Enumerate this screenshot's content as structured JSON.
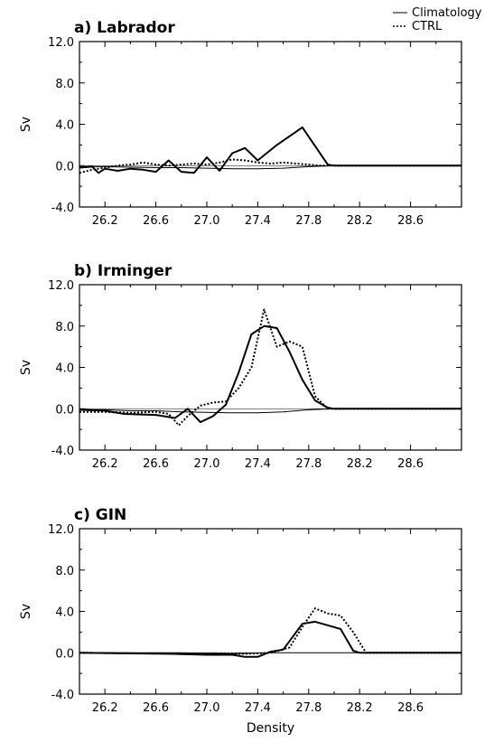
{
  "legend": {
    "climatology_label": "Climatology",
    "ctrl_label": "CTRL"
  },
  "chart_data": [
    {
      "type": "line",
      "title": "a) Labrador",
      "ylabel": "Sv",
      "xlabel": "",
      "xlim": [
        26.0,
        29.0
      ],
      "ylim": [
        -4.0,
        12.0
      ],
      "xticks": [
        "26.2",
        "26.6",
        "27.0",
        "27.4",
        "27.8",
        "28.2",
        "28.6"
      ],
      "yticks": [
        "12.0",
        "8.0",
        "4.0",
        "0.0",
        "-4.0"
      ],
      "series": [
        {
          "key": "climatology",
          "style": "thin-solid",
          "points": [
            [
              26.0,
              -0.1
            ],
            [
              26.2,
              -0.1
            ],
            [
              26.4,
              -0.15
            ],
            [
              26.6,
              -0.2
            ],
            [
              26.8,
              -0.2
            ],
            [
              27.0,
              -0.25
            ],
            [
              27.2,
              -0.3
            ],
            [
              27.4,
              -0.3
            ],
            [
              27.6,
              -0.25
            ],
            [
              27.8,
              -0.1
            ],
            [
              28.0,
              0.0
            ],
            [
              28.4,
              0.0
            ],
            [
              29.0,
              0.0
            ]
          ]
        },
        {
          "key": "ctrl",
          "style": "dotted",
          "points": [
            [
              26.0,
              -0.7
            ],
            [
              26.1,
              -0.4
            ],
            [
              26.2,
              -0.2
            ],
            [
              26.3,
              0.0
            ],
            [
              26.4,
              0.1
            ],
            [
              26.5,
              0.3
            ],
            [
              26.6,
              0.1
            ],
            [
              26.7,
              0.0
            ],
            [
              26.8,
              0.1
            ],
            [
              26.9,
              0.2
            ],
            [
              27.0,
              0.1
            ],
            [
              27.1,
              0.3
            ],
            [
              27.2,
              0.6
            ],
            [
              27.3,
              0.5
            ],
            [
              27.4,
              0.3
            ],
            [
              27.5,
              0.2
            ],
            [
              27.6,
              0.3
            ],
            [
              27.7,
              0.2
            ],
            [
              27.8,
              0.1
            ],
            [
              27.9,
              0.0
            ],
            [
              28.0,
              0.0
            ],
            [
              29.0,
              0.0
            ]
          ]
        },
        {
          "key": "model",
          "style": "thick-solid",
          "points": [
            [
              26.0,
              -0.2
            ],
            [
              26.1,
              -0.1
            ],
            [
              26.15,
              -0.7
            ],
            [
              26.2,
              -0.3
            ],
            [
              26.3,
              -0.5
            ],
            [
              26.4,
              -0.3
            ],
            [
              26.5,
              -0.4
            ],
            [
              26.6,
              -0.6
            ],
            [
              26.7,
              0.5
            ],
            [
              26.8,
              -0.6
            ],
            [
              26.9,
              -0.7
            ],
            [
              27.0,
              0.8
            ],
            [
              27.1,
              -0.5
            ],
            [
              27.2,
              1.2
            ],
            [
              27.3,
              1.7
            ],
            [
              27.4,
              0.5
            ],
            [
              27.55,
              2.0
            ],
            [
              27.75,
              3.7
            ],
            [
              27.95,
              0.1
            ],
            [
              28.0,
              0.0
            ],
            [
              29.0,
              0.0
            ]
          ]
        }
      ]
    },
    {
      "type": "line",
      "title": "b) Irminger",
      "ylabel": "Sv",
      "xlabel": "",
      "xlim": [
        26.0,
        29.0
      ],
      "ylim": [
        -4.0,
        12.0
      ],
      "xticks": [
        "26.2",
        "26.6",
        "27.0",
        "27.4",
        "27.8",
        "28.2",
        "28.6"
      ],
      "yticks": [
        "12.0",
        "8.0",
        "4.0",
        "0.0",
        "-4.0"
      ],
      "series": [
        {
          "key": "climatology",
          "style": "thin-solid",
          "points": [
            [
              26.0,
              -0.1
            ],
            [
              26.2,
              -0.1
            ],
            [
              26.4,
              -0.2
            ],
            [
              26.6,
              -0.2
            ],
            [
              26.8,
              -0.3
            ],
            [
              27.0,
              -0.35
            ],
            [
              27.2,
              -0.4
            ],
            [
              27.4,
              -0.4
            ],
            [
              27.6,
              -0.3
            ],
            [
              27.8,
              -0.1
            ],
            [
              28.0,
              0.0
            ],
            [
              29.0,
              0.0
            ]
          ]
        },
        {
          "key": "ctrl",
          "style": "dotted",
          "points": [
            [
              26.0,
              -0.3
            ],
            [
              26.2,
              -0.3
            ],
            [
              26.4,
              -0.4
            ],
            [
              26.6,
              -0.3
            ],
            [
              26.7,
              -0.5
            ],
            [
              26.78,
              -1.6
            ],
            [
              26.85,
              -0.7
            ],
            [
              26.95,
              0.3
            ],
            [
              27.05,
              0.6
            ],
            [
              27.15,
              0.7
            ],
            [
              27.25,
              2.0
            ],
            [
              27.35,
              4.0
            ],
            [
              27.45,
              9.6
            ],
            [
              27.55,
              6.0
            ],
            [
              27.65,
              6.5
            ],
            [
              27.75,
              6.0
            ],
            [
              27.85,
              1.2
            ],
            [
              27.95,
              0.0
            ],
            [
              28.0,
              0.0
            ],
            [
              29.0,
              0.0
            ]
          ]
        },
        {
          "key": "model",
          "style": "thick-solid",
          "points": [
            [
              26.0,
              -0.1
            ],
            [
              26.2,
              -0.2
            ],
            [
              26.35,
              -0.5
            ],
            [
              26.6,
              -0.6
            ],
            [
              26.75,
              -0.9
            ],
            [
              26.85,
              0.0
            ],
            [
              26.95,
              -1.3
            ],
            [
              27.05,
              -0.7
            ],
            [
              27.15,
              0.4
            ],
            [
              27.25,
              3.5
            ],
            [
              27.35,
              7.2
            ],
            [
              27.45,
              8.0
            ],
            [
              27.55,
              7.8
            ],
            [
              27.65,
              5.5
            ],
            [
              27.75,
              2.8
            ],
            [
              27.85,
              0.8
            ],
            [
              27.95,
              0.1
            ],
            [
              28.0,
              0.0
            ],
            [
              29.0,
              0.0
            ]
          ]
        }
      ]
    },
    {
      "type": "line",
      "title": "c) GIN",
      "ylabel": "Sv",
      "xlabel": "Density",
      "xlim": [
        26.0,
        29.0
      ],
      "ylim": [
        -4.0,
        12.0
      ],
      "xticks": [
        "26.2",
        "26.6",
        "27.0",
        "27.4",
        "27.8",
        "28.2",
        "28.6"
      ],
      "yticks": [
        "12.0",
        "8.0",
        "4.0",
        "0.0",
        "-4.0"
      ],
      "series": [
        {
          "key": "climatology",
          "style": "thin-solid",
          "points": [
            [
              26.0,
              0.0
            ],
            [
              26.8,
              0.0
            ],
            [
              27.2,
              -0.1
            ],
            [
              27.5,
              0.0
            ],
            [
              27.8,
              0.0
            ],
            [
              28.2,
              0.0
            ],
            [
              29.0,
              0.0
            ]
          ]
        },
        {
          "key": "ctrl",
          "style": "dotted",
          "points": [
            [
              26.0,
              0.0
            ],
            [
              26.8,
              -0.1
            ],
            [
              27.1,
              -0.1
            ],
            [
              27.3,
              -0.1
            ],
            [
              27.5,
              0.0
            ],
            [
              27.65,
              0.5
            ],
            [
              27.75,
              2.5
            ],
            [
              27.85,
              4.3
            ],
            [
              27.95,
              3.8
            ],
            [
              28.05,
              3.6
            ],
            [
              28.15,
              2.0
            ],
            [
              28.25,
              0.0
            ],
            [
              29.0,
              0.0
            ]
          ]
        },
        {
          "key": "model",
          "style": "thick-solid",
          "points": [
            [
              26.0,
              0.0
            ],
            [
              26.7,
              -0.1
            ],
            [
              27.0,
              -0.2
            ],
            [
              27.2,
              -0.2
            ],
            [
              27.3,
              -0.4
            ],
            [
              27.4,
              -0.4
            ],
            [
              27.5,
              0.1
            ],
            [
              27.6,
              0.3
            ],
            [
              27.75,
              2.8
            ],
            [
              27.85,
              3.0
            ],
            [
              28.05,
              2.3
            ],
            [
              28.15,
              0.2
            ],
            [
              28.2,
              0.0
            ],
            [
              29.0,
              0.0
            ]
          ]
        }
      ]
    }
  ]
}
